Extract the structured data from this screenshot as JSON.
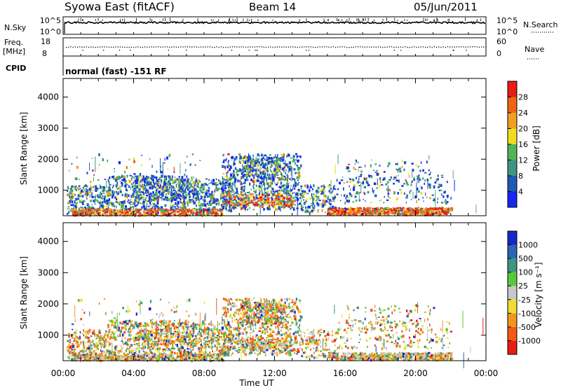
{
  "header": {
    "station": "Syowa East (fitACF)",
    "beam": "Beam 14",
    "date": "05/Jun/2011"
  },
  "noise_panel": {
    "left_label": "N.Sky",
    "left_ticks": [
      "10^5",
      "10^0"
    ],
    "right_ticks": [
      "10^5",
      "10^0"
    ],
    "right_label": "N.Search"
  },
  "freq_panel": {
    "left_label_line1": "Freq.",
    "left_label_line2": "[MHz]",
    "left_ticks": [
      "18",
      "8"
    ],
    "right_ticks": [
      "60",
      "0"
    ],
    "right_label": "Nave"
  },
  "cpid_panel": {
    "label": "CPID",
    "mode_text": "normal (fast) -151 RF"
  },
  "chart_data": [
    {
      "type": "heatmap",
      "name": "power",
      "ylabel": "Slant Range [km]",
      "ylim": [
        180,
        4600
      ],
      "y_ticks": [
        "4000",
        "3000",
        "2000",
        "1000"
      ],
      "xlim": [
        0,
        24
      ],
      "colorbar": {
        "label": "Power [dB]",
        "range": [
          0,
          32
        ],
        "tick_labels": [
          "28",
          "24",
          "20",
          "16",
          "12",
          "8",
          "4"
        ],
        "colors": [
          "#1428f0",
          "#1e5ab4",
          "#3c9682",
          "#50b45a",
          "#f0dc1e",
          "#f0a01e",
          "#f06414",
          "#e61e14"
        ]
      }
    },
    {
      "type": "heatmap",
      "name": "velocity",
      "ylabel": "Slant Range [km]",
      "ylim": [
        180,
        4600
      ],
      "y_ticks": [
        "4000",
        "3000",
        "2000",
        "1000"
      ],
      "xlim": [
        0,
        24
      ],
      "xlabel": "Time UT",
      "x_tick_labels": [
        "00:00",
        "04:00",
        "08:00",
        "12:00",
        "16:00",
        "20:00",
        "00:00"
      ],
      "colorbar": {
        "label": "Velocity [m s⁻¹]",
        "tick_labels": [
          "1000",
          "500",
          "100",
          "25",
          "-25",
          "-100",
          "-500",
          "-1000"
        ],
        "colors": [
          "#1428c8",
          "#2d64b4",
          "#3c9682",
          "#5ac83c",
          "#c8c8c8",
          "#f0dc32",
          "#f0961e",
          "#f05a14",
          "#e61e14"
        ]
      }
    }
  ]
}
